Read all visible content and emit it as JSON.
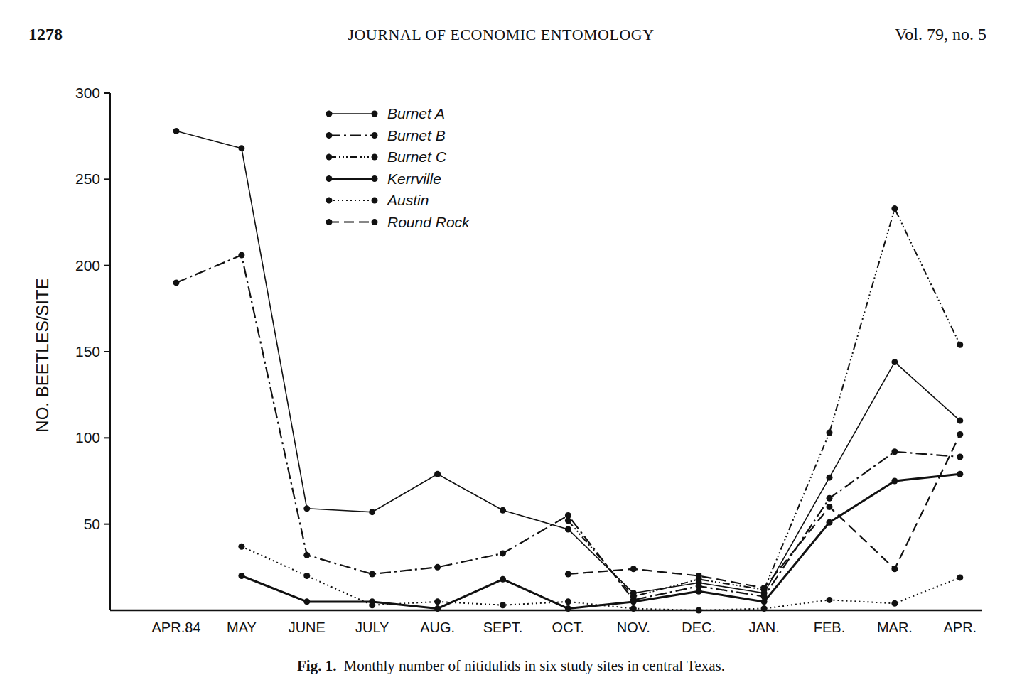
{
  "page": {
    "page_number": "1278",
    "journal": "JOURNAL OF ECONOMIC ENTOMOLOGY",
    "volume": "Vol. 79, no. 5",
    "figure_label": "Fig. 1."
  },
  "chart_data": {
    "type": "line",
    "title": "Monthly number of nitidulids in six study sites in central Texas.",
    "y_label": "NO. BEETLES/SITE",
    "categories": [
      "APR.84",
      "MAY",
      "JUNE",
      "JULY",
      "AUG.",
      "SEPT.",
      "OCT.",
      "NOV.",
      "DEC.",
      "JAN.",
      "FEB.",
      "MAR.",
      "APR."
    ],
    "ylim": [
      0,
      300
    ],
    "yticks": [
      50,
      100,
      150,
      200,
      250,
      300
    ],
    "grid": false,
    "legend": "top-left",
    "series": [
      {
        "name": "Burnet A",
        "color": "#111111",
        "line_style": "solid",
        "marker": "circle",
        "values": [
          278,
          268,
          59,
          57,
          79,
          58,
          47,
          10,
          16,
          10,
          77,
          144,
          110
        ]
      },
      {
        "name": "Burnet B",
        "color": "#111111",
        "line_style": "dashdot",
        "marker": "circle",
        "values": [
          190,
          206,
          32,
          21,
          25,
          33,
          55,
          6,
          14,
          8,
          65,
          92,
          89
        ]
      },
      {
        "name": "Burnet C",
        "color": "#111111",
        "line_style": "dashdotdot",
        "marker": "circle",
        "values": [
          null,
          null,
          null,
          null,
          null,
          null,
          52,
          8,
          18,
          12,
          103,
          233,
          154
        ]
      },
      {
        "name": "Kerrville",
        "color": "#111111",
        "line_style": "bold",
        "marker": "circle",
        "values": [
          null,
          20,
          5,
          5,
          1,
          18,
          1,
          5,
          11,
          5,
          51,
          75,
          79
        ]
      },
      {
        "name": "Austin",
        "color": "#111111",
        "line_style": "dotted",
        "marker": "circle",
        "values": [
          null,
          37,
          20,
          3,
          5,
          3,
          5,
          1,
          0,
          1,
          6,
          4,
          19
        ]
      },
      {
        "name": "Round Rock",
        "color": "#111111",
        "line_style": "dashed",
        "marker": "circle",
        "values": [
          null,
          null,
          null,
          null,
          null,
          null,
          21,
          24,
          20,
          13,
          60,
          24,
          102
        ]
      }
    ]
  }
}
